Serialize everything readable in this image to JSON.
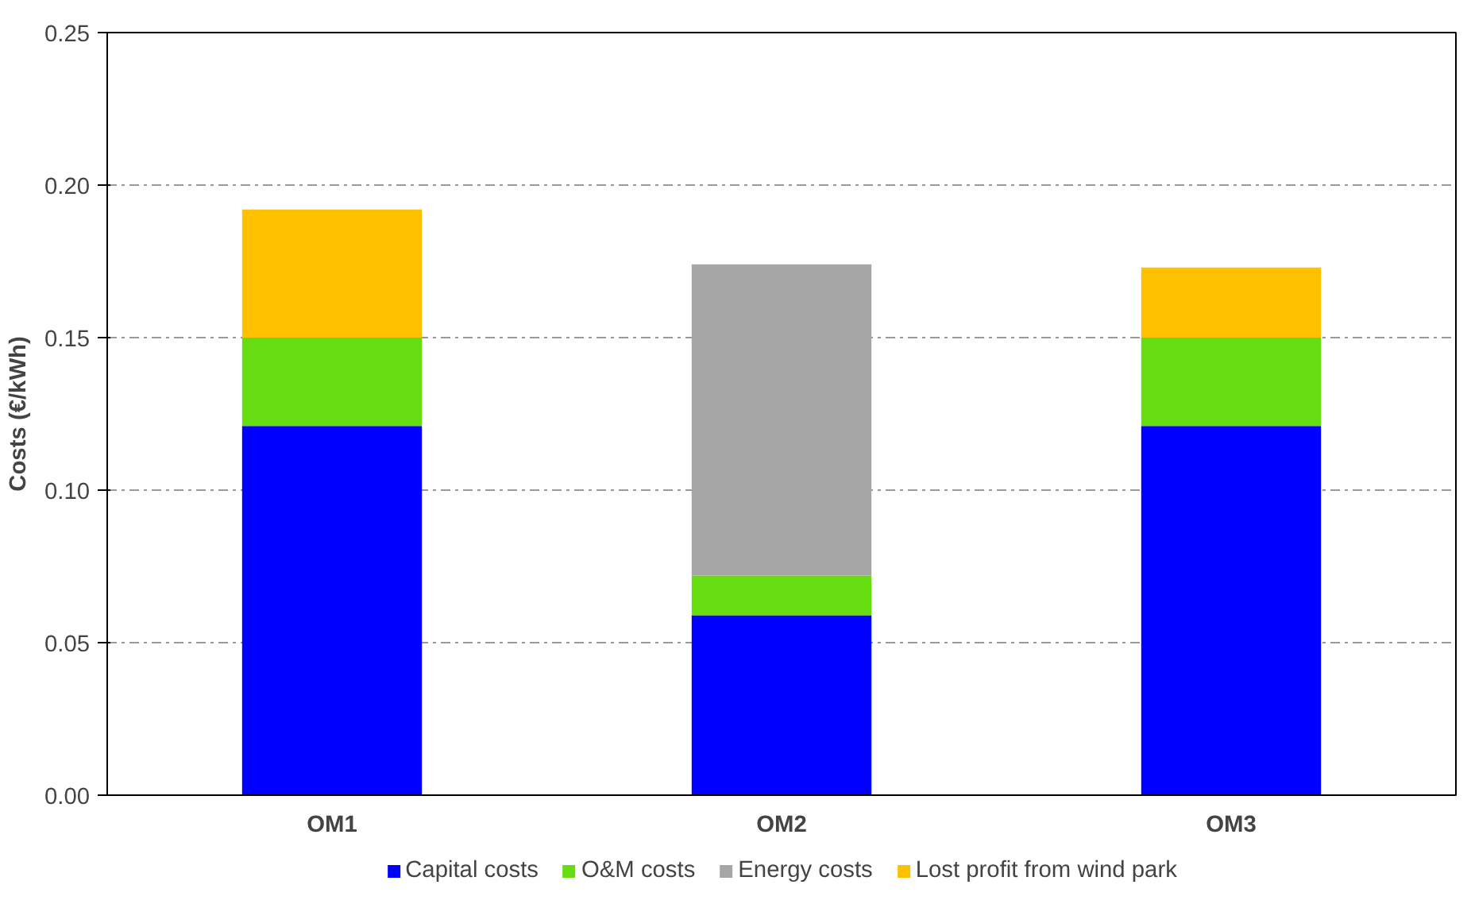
{
  "chart_data": {
    "type": "bar",
    "stacked": true,
    "ylabel": "Costs (€/kWh)",
    "categories": [
      "OM1",
      "OM2",
      "OM3"
    ],
    "series": [
      {
        "name": "Capital costs",
        "color": "#0000ff",
        "values": [
          0.121,
          0.059,
          0.121
        ]
      },
      {
        "name": "O&M costs",
        "color": "#66dd11",
        "values": [
          0.029,
          0.013,
          0.029
        ]
      },
      {
        "name": "Energy costs",
        "color": "#a6a6a6",
        "values": [
          null,
          0.102,
          null
        ]
      },
      {
        "name": "Lost profit from wind park",
        "color": "#ffc000",
        "values": [
          0.042,
          null,
          0.023
        ]
      }
    ],
    "ylim": [
      0,
      0.25
    ],
    "yticks": [
      {
        "value": 0,
        "label": "0.00"
      },
      {
        "value": 0.05,
        "label": "0.05"
      },
      {
        "value": 0.1,
        "label": "0.10"
      },
      {
        "value": 0.15,
        "label": "0.15"
      },
      {
        "value": 0.2,
        "label": "0.20"
      },
      {
        "value": 0.25,
        "label": "0.25"
      }
    ],
    "grid": "y",
    "legend": "bottom"
  }
}
